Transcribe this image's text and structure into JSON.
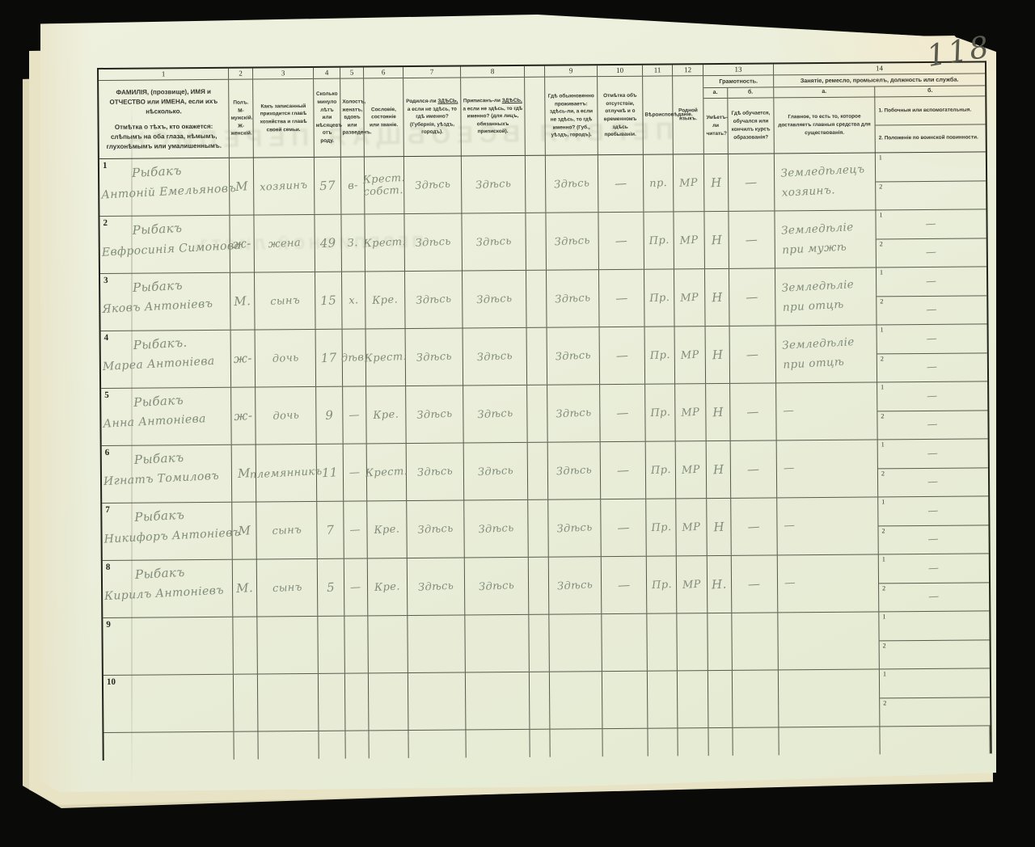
{
  "page": {
    "number": "118"
  },
  "ghosts": {
    "g1": "ПЕРВАЯ ВСЕОБЩАЯ ПЕРЕПИСЬ",
    "g2": "ПЕРЕПИСНОЙ ЛИСТЪ"
  },
  "form": {
    "sub1": "1",
    "sub2": "2"
  },
  "header": {
    "c1": {
      "num": "1",
      "line1": "ФАМИЛІЯ, (прозвище), ИМЯ и ОТЧЕСТВО или ИМЕНА, если ихъ нѣсколько.",
      "line2": "Отмѣтка о тѣхъ, кто окажется: слѣпымъ на оба глаза, нѣмымъ, глухонѣмымъ или умалишеннымъ."
    },
    "c2": {
      "num": "2",
      "text": "Полъ. М-мужскій. Ж-женскій."
    },
    "c3": {
      "num": "3",
      "text": "Какъ записанный приходится главѣ хозяйства и главѣ своей семьи."
    },
    "c4": {
      "num": "4",
      "text": "Сколько минуло лѣтъ или мѣсяцевъ отъ роду."
    },
    "c5": {
      "num": "5",
      "text": "Холостъ, женатъ, вдовъ или разведенъ."
    },
    "c6": {
      "num": "6",
      "text": "Сословіе, состояніе или званіе."
    },
    "c7": {
      "num": "7",
      "pre": "Родился-ли",
      "em": "ЗДѢСЬ,",
      "post": "а если не здѣсь, то гдѣ именно? (Губернія, уѣздъ, городъ)."
    },
    "c8": {
      "num": "8",
      "pre": "Приписанъ-ли",
      "em": "ЗДѢСЬ,",
      "post": "а если не здѣсь, то гдѣ именно? (для лицъ, обязанныхъ припиской)."
    },
    "c9": {
      "num": "9",
      "text": "Гдѣ обыкновенно проживаетъ: здѣсь-ли, а если не здѣсь, то гдѣ именно? (Губ., уѣздъ, городъ)."
    },
    "c10": {
      "num": "10",
      "text": "Отмѣтка объ отсутствіи, отлучкѣ и о временномъ здѣсь пребываніи."
    },
    "c11": {
      "num": "11",
      "text": "Вѣроисповѣданіе."
    },
    "c12": {
      "num": "12",
      "text": "Родной языкъ."
    },
    "c13": {
      "num": "13",
      "title": "Грамотность.",
      "sub_a": "а.",
      "sub_b": "б.",
      "a": "Умѣетъ-ли читать?",
      "b": "Гдѣ обучается, обучался или кончилъ курсъ образованія?"
    },
    "c14": {
      "num": "14",
      "title": "Занятіе, ремесло, промыселъ, должность или служба.",
      "sub_a": "а.",
      "sub_b": "б.",
      "a": "Главное, то есть то, которое доставляетъ главныя средства для существованія.",
      "b1": "1. Побочныя или вспомогательныя.",
      "b2": "2. Положеніе по воинской повинности."
    }
  },
  "rows": [
    {
      "num": "1",
      "name1": "Рыбакъ",
      "name2": "Антоній Емельяновъ",
      "sex": "М",
      "relation": "хозяинъ",
      "age": "57",
      "marital": "в-",
      "estate": "Крест. собст.",
      "born": "Здѣсь",
      "registered": "Здѣсь",
      "resides": "Здѣсь",
      "absence": "—",
      "religion": "пр.",
      "language": "МР",
      "reads": "Н",
      "educated": "—",
      "occ_main": "Земледѣлецъ хозяинъ.",
      "occ_side": "",
      "military": ""
    },
    {
      "num": "2",
      "name1": "Рыбакъ",
      "name2": "Евфросинія Симонова",
      "sex": "ж-",
      "relation": "жена",
      "age": "49",
      "marital": "З.",
      "estate": "Крест.",
      "born": "Здѣсь",
      "registered": "Здѣсь",
      "resides": "Здѣсь",
      "absence": "—",
      "religion": "Пр.",
      "language": "МР",
      "reads": "Н",
      "educated": "—",
      "occ_main": "Земледѣліе при мужѣ",
      "occ_side": "—",
      "military": "—"
    },
    {
      "num": "3",
      "name1": "Рыбакъ",
      "name2": "Яковъ Антоніевъ",
      "sex": "М.",
      "relation": "сынъ",
      "age": "15",
      "marital": "х.",
      "estate": "Кре.",
      "born": "Здѣсь",
      "registered": "Здѣсь",
      "resides": "Здѣсь",
      "absence": "—",
      "religion": "Пр.",
      "language": "МР",
      "reads": "Н",
      "educated": "—",
      "occ_main": "Земледѣліе при отцѣ",
      "occ_side": "—",
      "military": "—"
    },
    {
      "num": "4",
      "name1": "Рыбакъ.",
      "name2": "Мареа Антоніева",
      "sex": "ж-",
      "relation": "дочь",
      "age": "17",
      "marital": "дѣв.",
      "estate": "Крест.",
      "born": "Здѣсь",
      "registered": "Здѣсь",
      "resides": "Здѣсь",
      "absence": "—",
      "religion": "Пр.",
      "language": "МР",
      "reads": "Н",
      "educated": "—",
      "occ_main": "Земледѣліе при отцѣ",
      "occ_side": "—",
      "military": "—"
    },
    {
      "num": "5",
      "name1": "Рыбакъ",
      "name2": "Анна Антоніева",
      "sex": "ж-",
      "relation": "дочь",
      "age": "9",
      "marital": "—",
      "estate": "Кре.",
      "born": "Здѣсь",
      "registered": "Здѣсь",
      "resides": "Здѣсь",
      "absence": "—",
      "religion": "Пр.",
      "language": "МР",
      "reads": "Н",
      "educated": "—",
      "occ_main": "—",
      "occ_side": "—",
      "military": "—"
    },
    {
      "num": "6",
      "name1": "Рыбакъ",
      "name2": "Игнатъ Томиловъ",
      "sex": "М",
      "relation": "племянникъ",
      "age": "11",
      "marital": "—",
      "estate": "Крест.",
      "born": "Здѣсь",
      "registered": "Здѣсь",
      "resides": "Здѣсь",
      "absence": "—",
      "religion": "Пр.",
      "language": "МР",
      "reads": "Н",
      "educated": "—",
      "occ_main": "—",
      "occ_side": "—",
      "military": "—"
    },
    {
      "num": "7",
      "name1": "Рыбакъ",
      "name2": "Никифоръ Антоніевъ",
      "sex": "М",
      "relation": "сынъ",
      "age": "7",
      "marital": "—",
      "estate": "Кре.",
      "born": "Здѣсь",
      "registered": "Здѣсь",
      "resides": "Здѣсь",
      "absence": "—",
      "religion": "Пр.",
      "language": "МР",
      "reads": "Н",
      "educated": "—",
      "occ_main": "—",
      "occ_side": "—",
      "military": "—"
    },
    {
      "num": "8",
      "name1": "Рыбакъ",
      "name2": "Кирилъ Антоніевъ",
      "sex": "М.",
      "relation": "сынъ",
      "age": "5",
      "marital": "—",
      "estate": "Кре.",
      "born": "Здѣсь",
      "registered": "Здѣсь",
      "resides": "Здѣсь",
      "absence": "—",
      "religion": "Пр.",
      "language": "МР",
      "reads": "Н.",
      "educated": "—",
      "occ_main": "—",
      "occ_side": "—",
      "military": "—"
    },
    {
      "num": "9",
      "name1": "",
      "name2": "",
      "sex": "",
      "relation": "",
      "age": "",
      "marital": "",
      "estate": "",
      "born": "",
      "registered": "",
      "resides": "",
      "absence": "",
      "religion": "",
      "language": "",
      "reads": "",
      "educated": "",
      "occ_main": "",
      "occ_side": "",
      "military": ""
    },
    {
      "num": "10",
      "name1": "",
      "name2": "",
      "sex": "",
      "relation": "",
      "age": "",
      "marital": "",
      "estate": "",
      "born": "",
      "registered": "",
      "resides": "",
      "absence": "",
      "religion": "",
      "language": "",
      "reads": "",
      "educated": "",
      "occ_main": "",
      "occ_side": "",
      "military": ""
    }
  ]
}
